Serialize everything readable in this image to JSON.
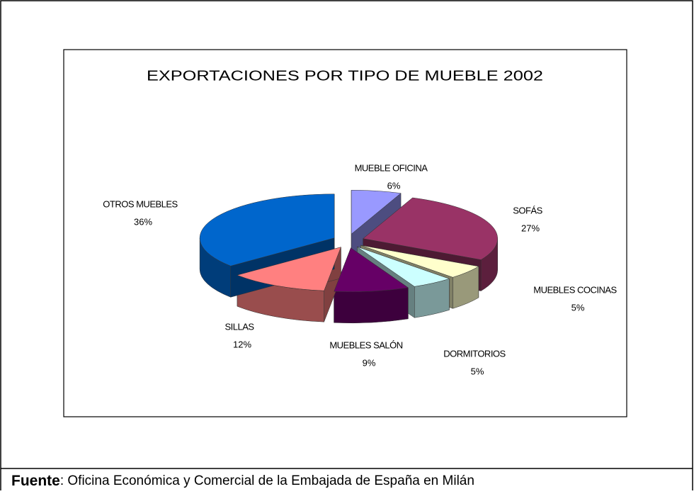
{
  "chart_data": {
    "type": "pie",
    "title": "EXPORTACIONES POR TIPO DE MUEBLE 2002",
    "categories": [
      "MUEBLE OFICINA",
      "SOFÁS",
      "MUEBLES COCINAS",
      "DORMITORIOS",
      "MUEBLES SALÓN",
      "SILLAS",
      "OTROS MUEBLES"
    ],
    "values": [
      6,
      27,
      5,
      5,
      9,
      12,
      36
    ],
    "value_labels": [
      "6%",
      "27%",
      "5%",
      "5%",
      "9%",
      "12%",
      "36%"
    ],
    "colors": [
      "#9999ff",
      "#993366",
      "#ffffcc",
      "#ccffff",
      "#660066",
      "#ff8080",
      "#0066cc"
    ]
  },
  "footer": {
    "label": "Fuente",
    "text": ": Oficina Económica y Comercial de la Embajada de España en Milán"
  }
}
